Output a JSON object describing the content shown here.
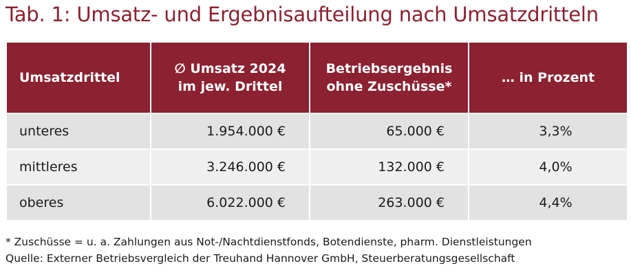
{
  "title": "Tab. 1: Umsatz- und Ergebnisaufteilung nach Umsatzdritteln",
  "colors": {
    "header_bg": "#8b2131",
    "title_color": "#8b2131",
    "row_dark": "#e2e2e2",
    "row_light": "#efefef"
  },
  "table": {
    "headers": {
      "col1": "Umsatzdrittel",
      "col2_line1": "∅ Umsatz 2024",
      "col2_line2": "im jew. Drittel",
      "col3_line1": "Betriebsergebnis",
      "col3_line2": "ohne Zuschüsse*",
      "col4": "… in Prozent"
    },
    "rows": [
      {
        "drittel": "unteres",
        "umsatz": "1.954.000 €",
        "ergebnis": "65.000 €",
        "prozent": "3,3%"
      },
      {
        "drittel": "mittleres",
        "umsatz": "3.246.000 €",
        "ergebnis": "132.000 €",
        "prozent": "4,0%"
      },
      {
        "drittel": "oberes",
        "umsatz": "6.022.000 €",
        "ergebnis": "263.000 €",
        "prozent": "4,4%"
      }
    ]
  },
  "footnotes": {
    "line1": "* Zuschüsse = u. a. Zahlungen aus Not-/Nachtdienstfonds, Botendienste, pharm. Dienstleistungen",
    "line2": "Quelle: Externer Betriebsvergleich der Treuhand Hannover GmbH, Steuerberatungsgesellschaft"
  }
}
